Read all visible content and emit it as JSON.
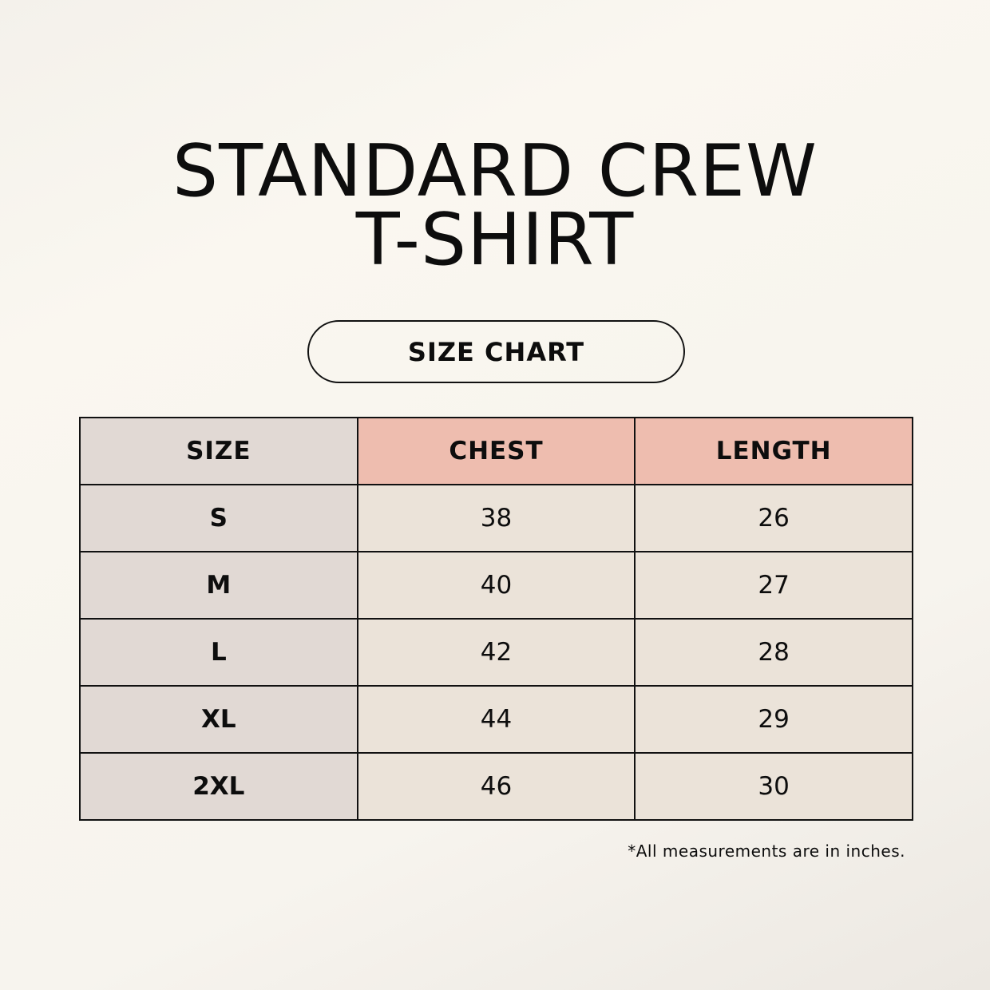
{
  "title": {
    "line1": "STANDARD CREW",
    "line2": "T-SHIRT"
  },
  "badge": "SIZE CHART",
  "table": {
    "headers": [
      "SIZE",
      "CHEST",
      "LENGTH"
    ],
    "rows": [
      [
        "S",
        "38",
        "26"
      ],
      [
        "M",
        "40",
        "27"
      ],
      [
        "L",
        "42",
        "28"
      ],
      [
        "XL",
        "44",
        "29"
      ],
      [
        "2XL",
        "46",
        "30"
      ]
    ]
  },
  "note": "*All measurements are in inches.",
  "colors": {
    "size_column": "#e1d9d4",
    "header_accent": "#eebdaf",
    "cell": "#ebe3d9"
  }
}
